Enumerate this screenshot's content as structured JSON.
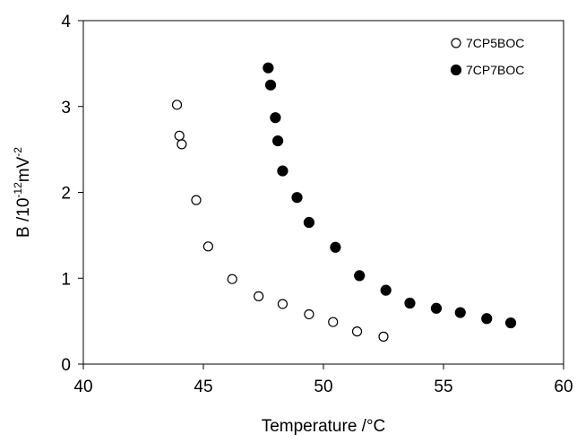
{
  "chart_data": {
    "type": "scatter",
    "title": "",
    "xlabel": "Temperature /°C",
    "ylabel": {
      "base": "B /10",
      "exp1": "-12",
      "mid": "mV",
      "exp2": "-2"
    },
    "xlim": [
      40,
      60
    ],
    "ylim": [
      0,
      4
    ],
    "xticks": [
      "40",
      "45",
      "50",
      "55",
      "60"
    ],
    "yticks": [
      "0",
      "1",
      "2",
      "3",
      "4"
    ],
    "grid": false,
    "legend_position": "top-right",
    "series": [
      {
        "name": "7CP5BOC",
        "marker": "open-circle",
        "points": [
          [
            43.9,
            3.02
          ],
          [
            44.0,
            2.66
          ],
          [
            44.1,
            2.56
          ],
          [
            44.7,
            1.91
          ],
          [
            45.2,
            1.37
          ],
          [
            46.2,
            0.99
          ],
          [
            47.3,
            0.79
          ],
          [
            48.3,
            0.7
          ],
          [
            49.4,
            0.58
          ],
          [
            50.4,
            0.49
          ],
          [
            51.4,
            0.38
          ],
          [
            52.5,
            0.32
          ]
        ]
      },
      {
        "name": "7CP7BOC",
        "marker": "filled-circle",
        "points": [
          [
            47.7,
            3.45
          ],
          [
            47.8,
            3.25
          ],
          [
            48.0,
            2.87
          ],
          [
            48.1,
            2.6
          ],
          [
            48.3,
            2.25
          ],
          [
            48.9,
            1.94
          ],
          [
            49.4,
            1.65
          ],
          [
            50.5,
            1.36
          ],
          [
            51.5,
            1.03
          ],
          [
            52.6,
            0.86
          ],
          [
            53.6,
            0.71
          ],
          [
            54.7,
            0.65
          ],
          [
            55.7,
            0.6
          ],
          [
            56.8,
            0.53
          ],
          [
            57.8,
            0.48
          ]
        ]
      }
    ]
  }
}
